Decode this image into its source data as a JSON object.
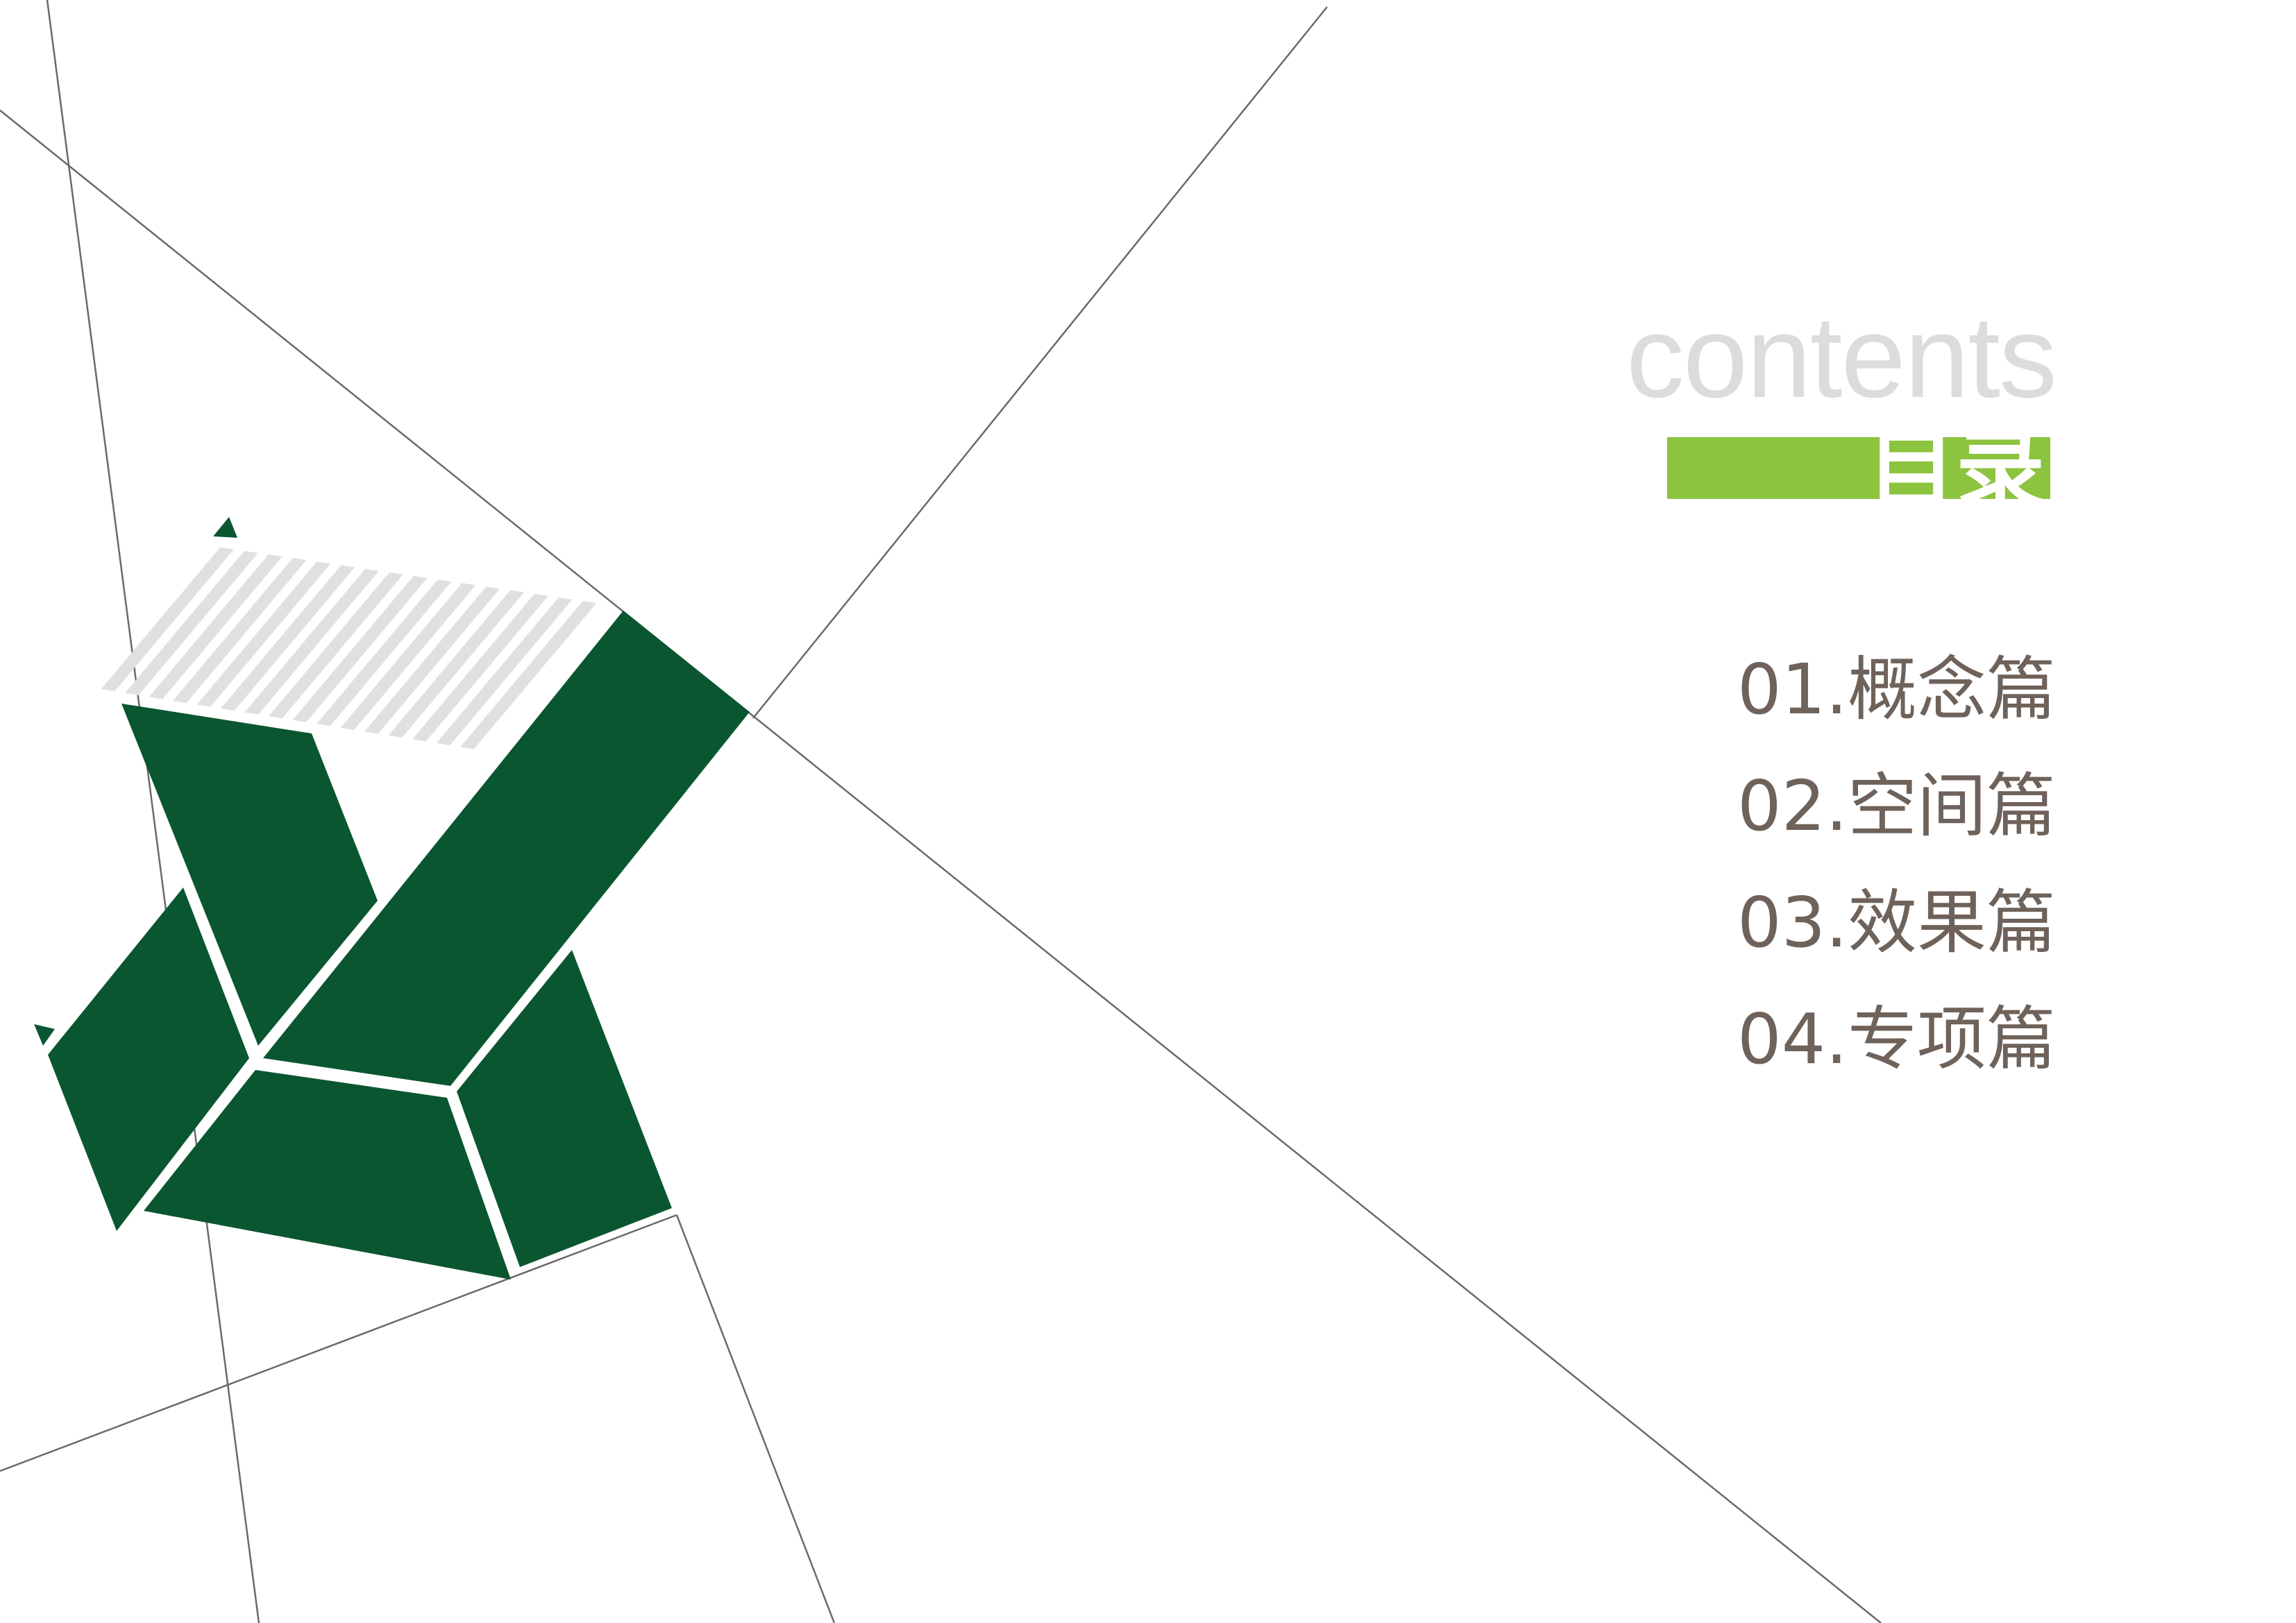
{
  "heading": {
    "english": "contents",
    "chinese": "目录"
  },
  "menu": {
    "items": [
      {
        "label": "01.概念篇"
      },
      {
        "label": "02.空间篇"
      },
      {
        "label": "03.效果篇"
      },
      {
        "label": "04.专项篇"
      }
    ]
  },
  "colors": {
    "dark_green": "#0a5630",
    "accent_green": "#8cc43f",
    "hatch_gray": "#e0e0e0",
    "line_gray": "#6a6a6a",
    "menu_text": "#6e625a",
    "contents_text": "#dcdcdc"
  }
}
